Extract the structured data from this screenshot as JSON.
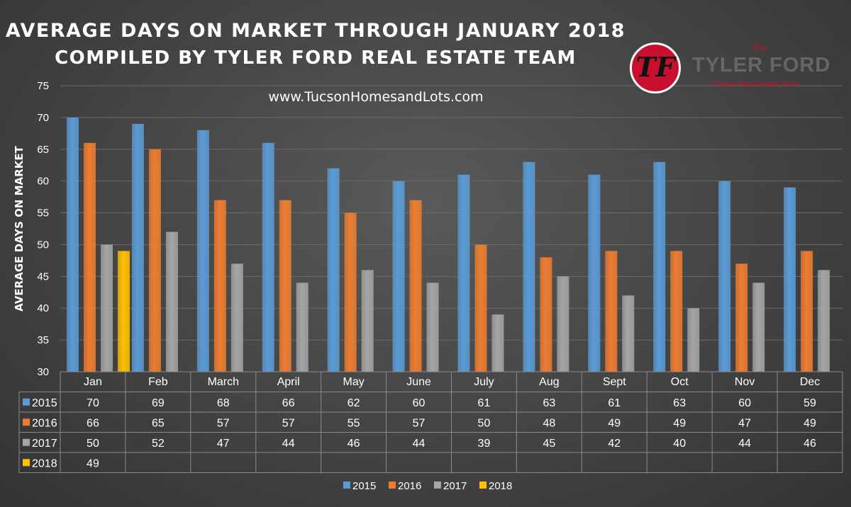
{
  "header": {
    "title_line1": "AVERAGE DAYS ON MARKET THROUGH JANUARY 2018",
    "title_line2": "COMPILED BY TYLER FORD REAL ESTATE TEAM",
    "website": "www.TucsonHomesandLots.com"
  },
  "logo": {
    "mark": "TF",
    "the": "The",
    "name": "TYLER FORD",
    "subtitle": "Tucson Real Estate Team"
  },
  "colors": {
    "2015": "#5b9bd5",
    "2016": "#ed7d31",
    "2017": "#a5a5a5",
    "2018": "#ffc000"
  },
  "chart_data": {
    "type": "bar",
    "title": "AVERAGE DAYS ON MARKET THROUGH JANUARY 2018",
    "ylabel": "AVERAGE DAYS ON MARKET",
    "xlabel": "",
    "ylim": [
      30,
      75
    ],
    "yticks": [
      30,
      35,
      40,
      45,
      50,
      55,
      60,
      65,
      70,
      75
    ],
    "grid": true,
    "legend": "bottom",
    "data_table": true,
    "categories": [
      "Jan",
      "Feb",
      "March",
      "April",
      "May",
      "June",
      "July",
      "Aug",
      "Sept",
      "Oct",
      "Nov",
      "Dec"
    ],
    "series": [
      {
        "name": "2015",
        "values": [
          70,
          69,
          68,
          66,
          62,
          60,
          61,
          63,
          61,
          63,
          60,
          59
        ]
      },
      {
        "name": "2016",
        "values": [
          66,
          65,
          57,
          57,
          55,
          57,
          50,
          48,
          49,
          49,
          47,
          49
        ]
      },
      {
        "name": "2017",
        "values": [
          50,
          52,
          47,
          44,
          46,
          44,
          39,
          45,
          42,
          40,
          44,
          46
        ]
      },
      {
        "name": "2018",
        "values": [
          49,
          null,
          null,
          null,
          null,
          null,
          null,
          null,
          null,
          null,
          null,
          null
        ]
      }
    ]
  }
}
